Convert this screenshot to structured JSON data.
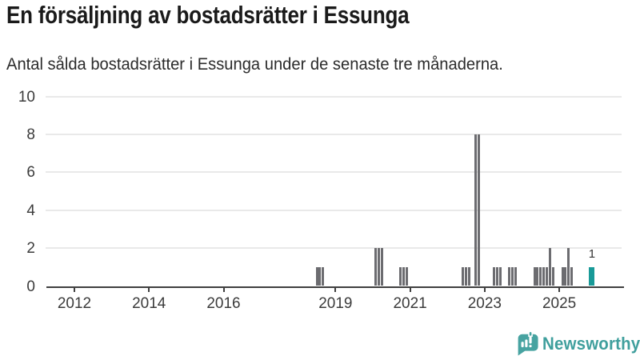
{
  "header": {
    "title": "En försäljning av bostadsrätter i Essunga",
    "subtitle": "Antal sålda bostadsrätter i Essunga under de senaste tre månaderna."
  },
  "footer": {
    "brand": "Newsworthy"
  },
  "colors": {
    "bar": "#6c6c70",
    "highlight": "#199a98",
    "grid": "#e9e9e9",
    "axis": "#3f3f3f",
    "axis_text": "#3b3b3b",
    "title_text": "#1a1a1a",
    "subtitle_text": "#2b2b2b",
    "value_label": "#333333",
    "brand": "#3f9f9d",
    "brand_icon": "#47a3a1"
  },
  "chart_data": {
    "type": "bar",
    "title": "En försäljning av bostadsrätter i Essunga",
    "xlabel": "",
    "ylabel": "",
    "ylim": [
      0,
      10
    ],
    "grid": true,
    "y_ticks": [
      0,
      2,
      4,
      6,
      8,
      10
    ],
    "x_tick_labels": [
      "2012",
      "2014",
      "2016",
      "2019",
      "2021",
      "2023",
      "2025"
    ],
    "x_range_months": [
      "2011-04",
      "2026-08"
    ],
    "bars": [
      {
        "month": "2018-07",
        "value": 1
      },
      {
        "month": "2018-08",
        "value": 1
      },
      {
        "month": "2018-09",
        "value": 1
      },
      {
        "month": "2020-02",
        "value": 2
      },
      {
        "month": "2020-03",
        "value": 2
      },
      {
        "month": "2020-04",
        "value": 2
      },
      {
        "month": "2020-10",
        "value": 1
      },
      {
        "month": "2020-11",
        "value": 1
      },
      {
        "month": "2020-12",
        "value": 1
      },
      {
        "month": "2022-06",
        "value": 1
      },
      {
        "month": "2022-07",
        "value": 1
      },
      {
        "month": "2022-08",
        "value": 1
      },
      {
        "month": "2022-10",
        "value": 8
      },
      {
        "month": "2022-11",
        "value": 8
      },
      {
        "month": "2023-04",
        "value": 1
      },
      {
        "month": "2023-05",
        "value": 1
      },
      {
        "month": "2023-06",
        "value": 1
      },
      {
        "month": "2023-09",
        "value": 1
      },
      {
        "month": "2023-10",
        "value": 1
      },
      {
        "month": "2023-11",
        "value": 1
      },
      {
        "month": "2024-05",
        "value": 1
      },
      {
        "month": "2024-06",
        "value": 1
      },
      {
        "month": "2024-07",
        "value": 1
      },
      {
        "month": "2024-08",
        "value": 1
      },
      {
        "month": "2024-09",
        "value": 1
      },
      {
        "month": "2024-10",
        "value": 2
      },
      {
        "month": "2024-11",
        "value": 1
      },
      {
        "month": "2025-02",
        "value": 1
      },
      {
        "month": "2025-03",
        "value": 1
      },
      {
        "month": "2025-04",
        "value": 2
      },
      {
        "month": "2025-05",
        "value": 1
      },
      {
        "month": "2025-11",
        "value": 1,
        "highlight": true,
        "label": "1"
      }
    ]
  }
}
